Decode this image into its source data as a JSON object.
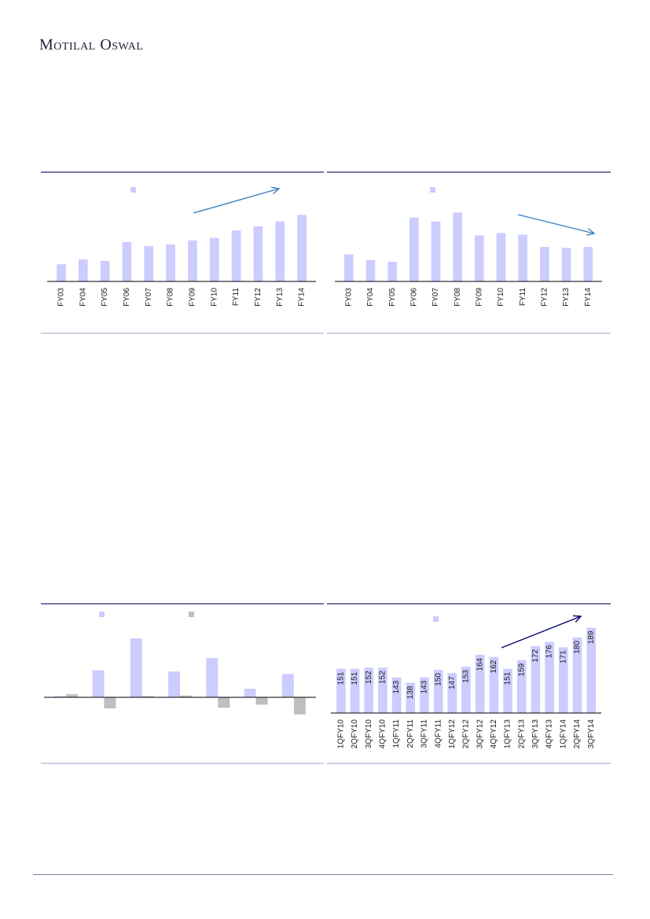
{
  "brand": {
    "name": "Motilal Oswal"
  },
  "colors": {
    "bar": "#ccccff",
    "bar_neg": "#bfbfbf",
    "rule": "#29296b",
    "rule_light": "#9aa6c8",
    "axis": "#000000",
    "arrow_up_left": "#3b7fbf",
    "arrow_down": "#3b7fbf",
    "arrow_quarter": "#00006e"
  },
  "chart_data": [
    {
      "type": "bar",
      "categories": [
        "FY03",
        "FY04",
        "FY05",
        "FY06",
        "FY07",
        "FY08",
        "FY09",
        "FY10",
        "FY11",
        "FY12",
        "FY13",
        "FY14"
      ],
      "series": [
        {
          "values": [
            21,
            27,
            25,
            48,
            43,
            45,
            50,
            53,
            62,
            67,
            73,
            81
          ]
        }
      ],
      "ylim": [
        0,
        90
      ],
      "legend": "top",
      "grid": false,
      "trend_arrow": "up"
    },
    {
      "type": "bar",
      "categories": [
        "FY03",
        "FY04",
        "FY05",
        "FY06",
        "FY07",
        "FY08",
        "FY09",
        "FY10",
        "FY11",
        "FY12",
        "FY13",
        "FY14"
      ],
      "series": [
        {
          "values": [
            33,
            26,
            24,
            78,
            73,
            84,
            56,
            59,
            57,
            42,
            41,
            42
          ]
        }
      ],
      "ylim": [
        0,
        90
      ],
      "legend": "top",
      "grid": false,
      "trend_arrow": "down"
    },
    {
      "type": "bar",
      "categories": [
        "",
        "",
        "",
        "",
        "",
        "",
        ""
      ],
      "series": [
        {
          "values": [
            1.0,
            22,
            48,
            21,
            32,
            7,
            19
          ]
        },
        {
          "values": [
            2.5,
            -9,
            1.0,
            1.5,
            -8.5,
            -6,
            -14
          ]
        }
      ],
      "ylim": [
        -20,
        50
      ],
      "legend": "top",
      "grid": false
    },
    {
      "type": "bar",
      "categories": [
        "1QFY10",
        "2QFY10",
        "3QFY10",
        "4QFY10",
        "1QFY11",
        "2QFY11",
        "3QFY11",
        "4QFY11",
        "1QFY12",
        "2QFY12",
        "3QFY12",
        "4QFY12",
        "1QFY13",
        "2QFY13",
        "3QFY13",
        "4QFY13",
        "1QFY14",
        "2QFY14",
        "3QFY14"
      ],
      "series": [
        {
          "values": [
            151,
            151,
            152,
            152,
            143,
            138,
            143,
            150,
            147,
            153,
            164,
            162,
            151,
            159,
            172,
            176,
            171,
            180,
            189
          ]
        }
      ],
      "data_labels": [
        "151",
        "151",
        "152",
        "152",
        "143",
        "138",
        "143",
        "150",
        "147",
        "153",
        "164",
        "162",
        "151",
        "159",
        "172",
        "176",
        "171",
        "180",
        "189"
      ],
      "ylim": [
        110,
        196
      ],
      "legend": "top",
      "grid": false,
      "trend_arrow": "up"
    }
  ]
}
